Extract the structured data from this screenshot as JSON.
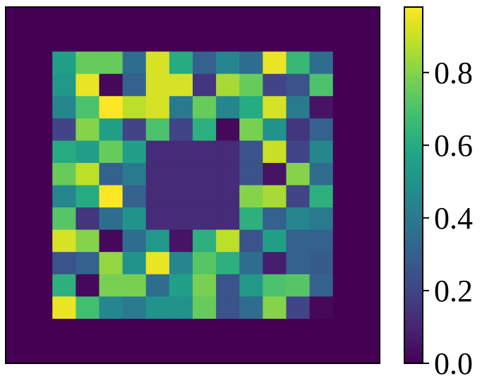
{
  "chart_data": {
    "type": "heatmap",
    "title": "",
    "xlabel": "",
    "ylabel": "",
    "nrows": 16,
    "ncols": 16,
    "values": [
      [
        0,
        0,
        0,
        0,
        0,
        0,
        0,
        0,
        0,
        0,
        0,
        0,
        0,
        0,
        0,
        0
      ],
      [
        0,
        0,
        0,
        0,
        0,
        0,
        0,
        0,
        0,
        0,
        0,
        0,
        0,
        0,
        0,
        0
      ],
      [
        0,
        0,
        0.55,
        0.75,
        0.75,
        0.35,
        0.92,
        0.6,
        0.3,
        0.45,
        0.35,
        0.95,
        0.65,
        0.35,
        0,
        0
      ],
      [
        0,
        0,
        0.52,
        0.95,
        0.02,
        0.3,
        0.92,
        0.92,
        0.15,
        0.85,
        0.75,
        0.2,
        0.25,
        0.7,
        0,
        0
      ],
      [
        0,
        0,
        0.45,
        0.7,
        0.98,
        0.88,
        0.92,
        0.4,
        0.75,
        0.45,
        0.6,
        0.92,
        0.4,
        0.05,
        0,
        0
      ],
      [
        0,
        0,
        0.2,
        0.8,
        0.55,
        0.2,
        0.7,
        0.2,
        0.62,
        0.02,
        0.78,
        0.5,
        0.15,
        0.3,
        0,
        0
      ],
      [
        0,
        0,
        0.6,
        0.55,
        0.75,
        0.55,
        0.12,
        0.12,
        0.12,
        0.12,
        0.25,
        0.9,
        0.2,
        0.45,
        0,
        0
      ],
      [
        0,
        0,
        0.75,
        0.88,
        0.3,
        0.4,
        0.12,
        0.12,
        0.12,
        0.12,
        0.25,
        0.05,
        0.8,
        0.35,
        0,
        0
      ],
      [
        0,
        0,
        0.45,
        0.6,
        0.98,
        0.3,
        0.12,
        0.12,
        0.12,
        0.12,
        0.8,
        0.85,
        0.2,
        0.62,
        0,
        0
      ],
      [
        0,
        0,
        0.72,
        0.15,
        0.35,
        0.5,
        0.12,
        0.12,
        0.12,
        0.12,
        0.62,
        0.3,
        0.45,
        0.4,
        0,
        0
      ],
      [
        0,
        0,
        0.92,
        0.8,
        0.02,
        0.35,
        0.52,
        0.05,
        0.62,
        0.88,
        0.25,
        0.55,
        0.3,
        0.3,
        0,
        0
      ],
      [
        0,
        0,
        0.25,
        0.3,
        0.82,
        0.5,
        0.95,
        0.45,
        0.72,
        0.62,
        0.35,
        0.08,
        0.3,
        0.28,
        0,
        0
      ],
      [
        0,
        0,
        0.62,
        0.02,
        0.78,
        0.78,
        0.35,
        0.55,
        0.78,
        0.25,
        0.52,
        0.7,
        0.72,
        0.3,
        0,
        0
      ],
      [
        0,
        0,
        0.95,
        0.68,
        0.45,
        0.4,
        0.5,
        0.5,
        0.75,
        0.25,
        0.35,
        0.8,
        0.2,
        0.02,
        0,
        0
      ],
      [
        0,
        0,
        0,
        0,
        0,
        0,
        0,
        0,
        0,
        0,
        0,
        0,
        0,
        0,
        0,
        0
      ],
      [
        0,
        0,
        0,
        0,
        0,
        0,
        0,
        0,
        0,
        0,
        0,
        0,
        0,
        0,
        0,
        0
      ]
    ],
    "colormap": "viridis",
    "vmin": 0,
    "vmax": 0.98,
    "colorbar": {
      "ticks": [
        0.0,
        0.2,
        0.4,
        0.6,
        0.8
      ],
      "tick_labels": [
        "0.0",
        "0.2",
        "0.4",
        "0.6",
        "0.8"
      ]
    },
    "grid": false
  }
}
